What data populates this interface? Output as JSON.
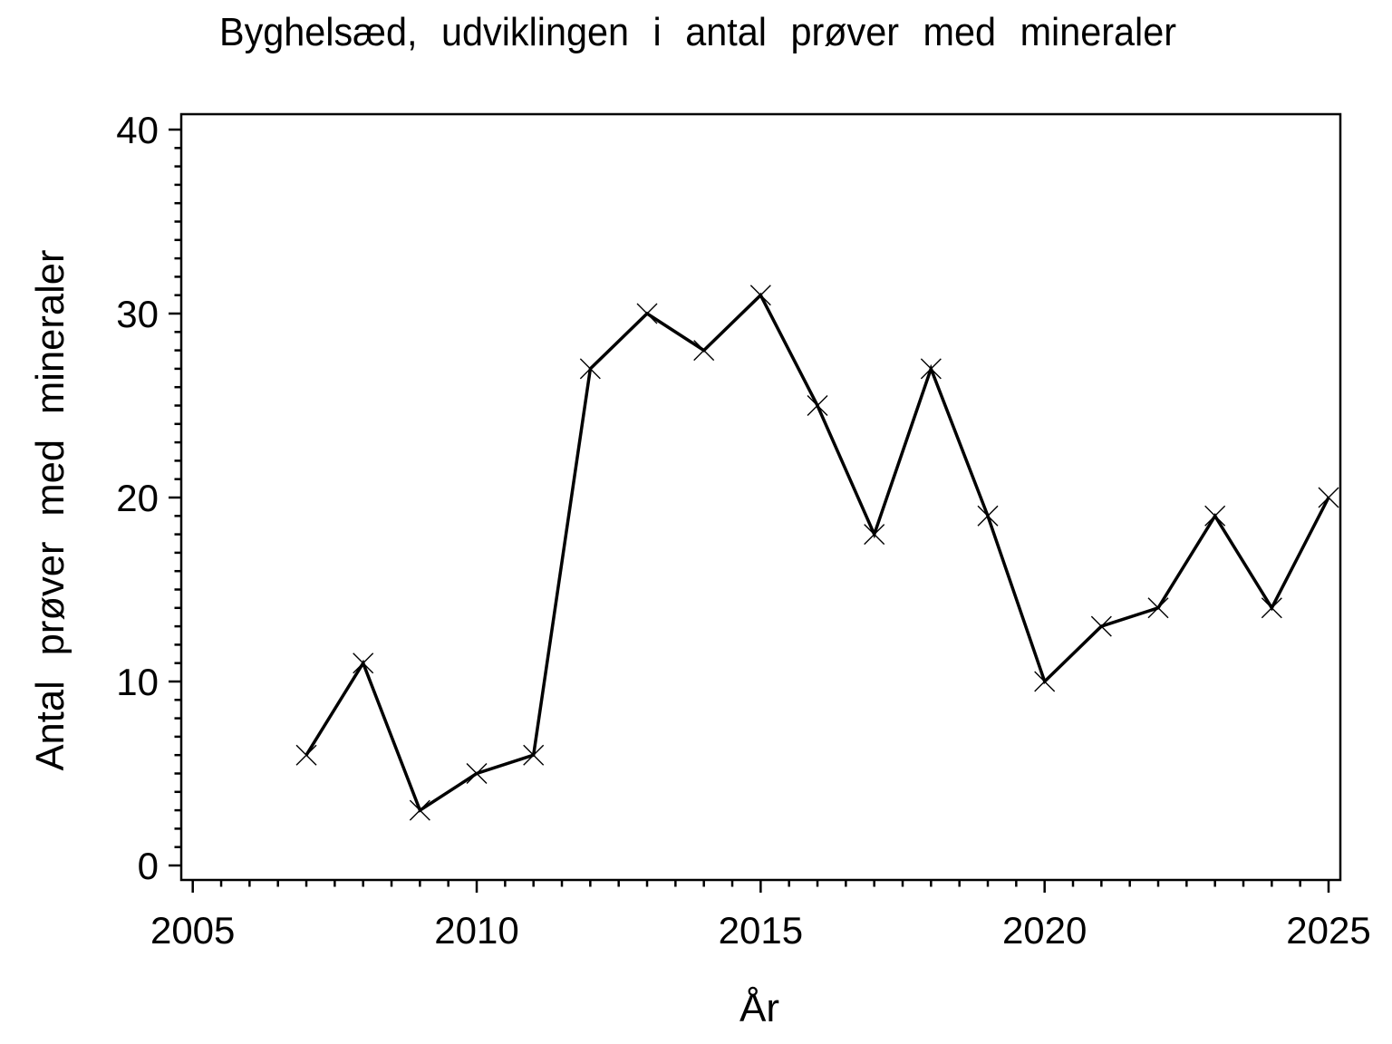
{
  "chart_data": {
    "type": "line",
    "title": "Byghelsæd, udviklingen i antal prøver med mineraler",
    "xlabel": "År",
    "ylabel": "Antal prøver med mineraler",
    "x": [
      2007,
      2008,
      2009,
      2010,
      2011,
      2012,
      2013,
      2014,
      2015,
      2016,
      2017,
      2018,
      2019,
      2020,
      2021,
      2022,
      2023,
      2024,
      2025
    ],
    "values": [
      6,
      11,
      3,
      5,
      6,
      27,
      30,
      28,
      31,
      25,
      18,
      27,
      19,
      10,
      13,
      14,
      19,
      14,
      20
    ],
    "marker": "x",
    "line_color": "#000000",
    "marker_color": "#000000",
    "background": "#ffffff",
    "xlim": [
      2005,
      2025
    ],
    "ylim": [
      0,
      40
    ],
    "x_ticks": [
      2005,
      2010,
      2015,
      2020,
      2025
    ],
    "y_ticks": [
      0,
      10,
      20,
      30,
      40
    ],
    "x_minor_step": 0.5,
    "y_minor_step": 1,
    "grid": false,
    "legend": "none"
  }
}
